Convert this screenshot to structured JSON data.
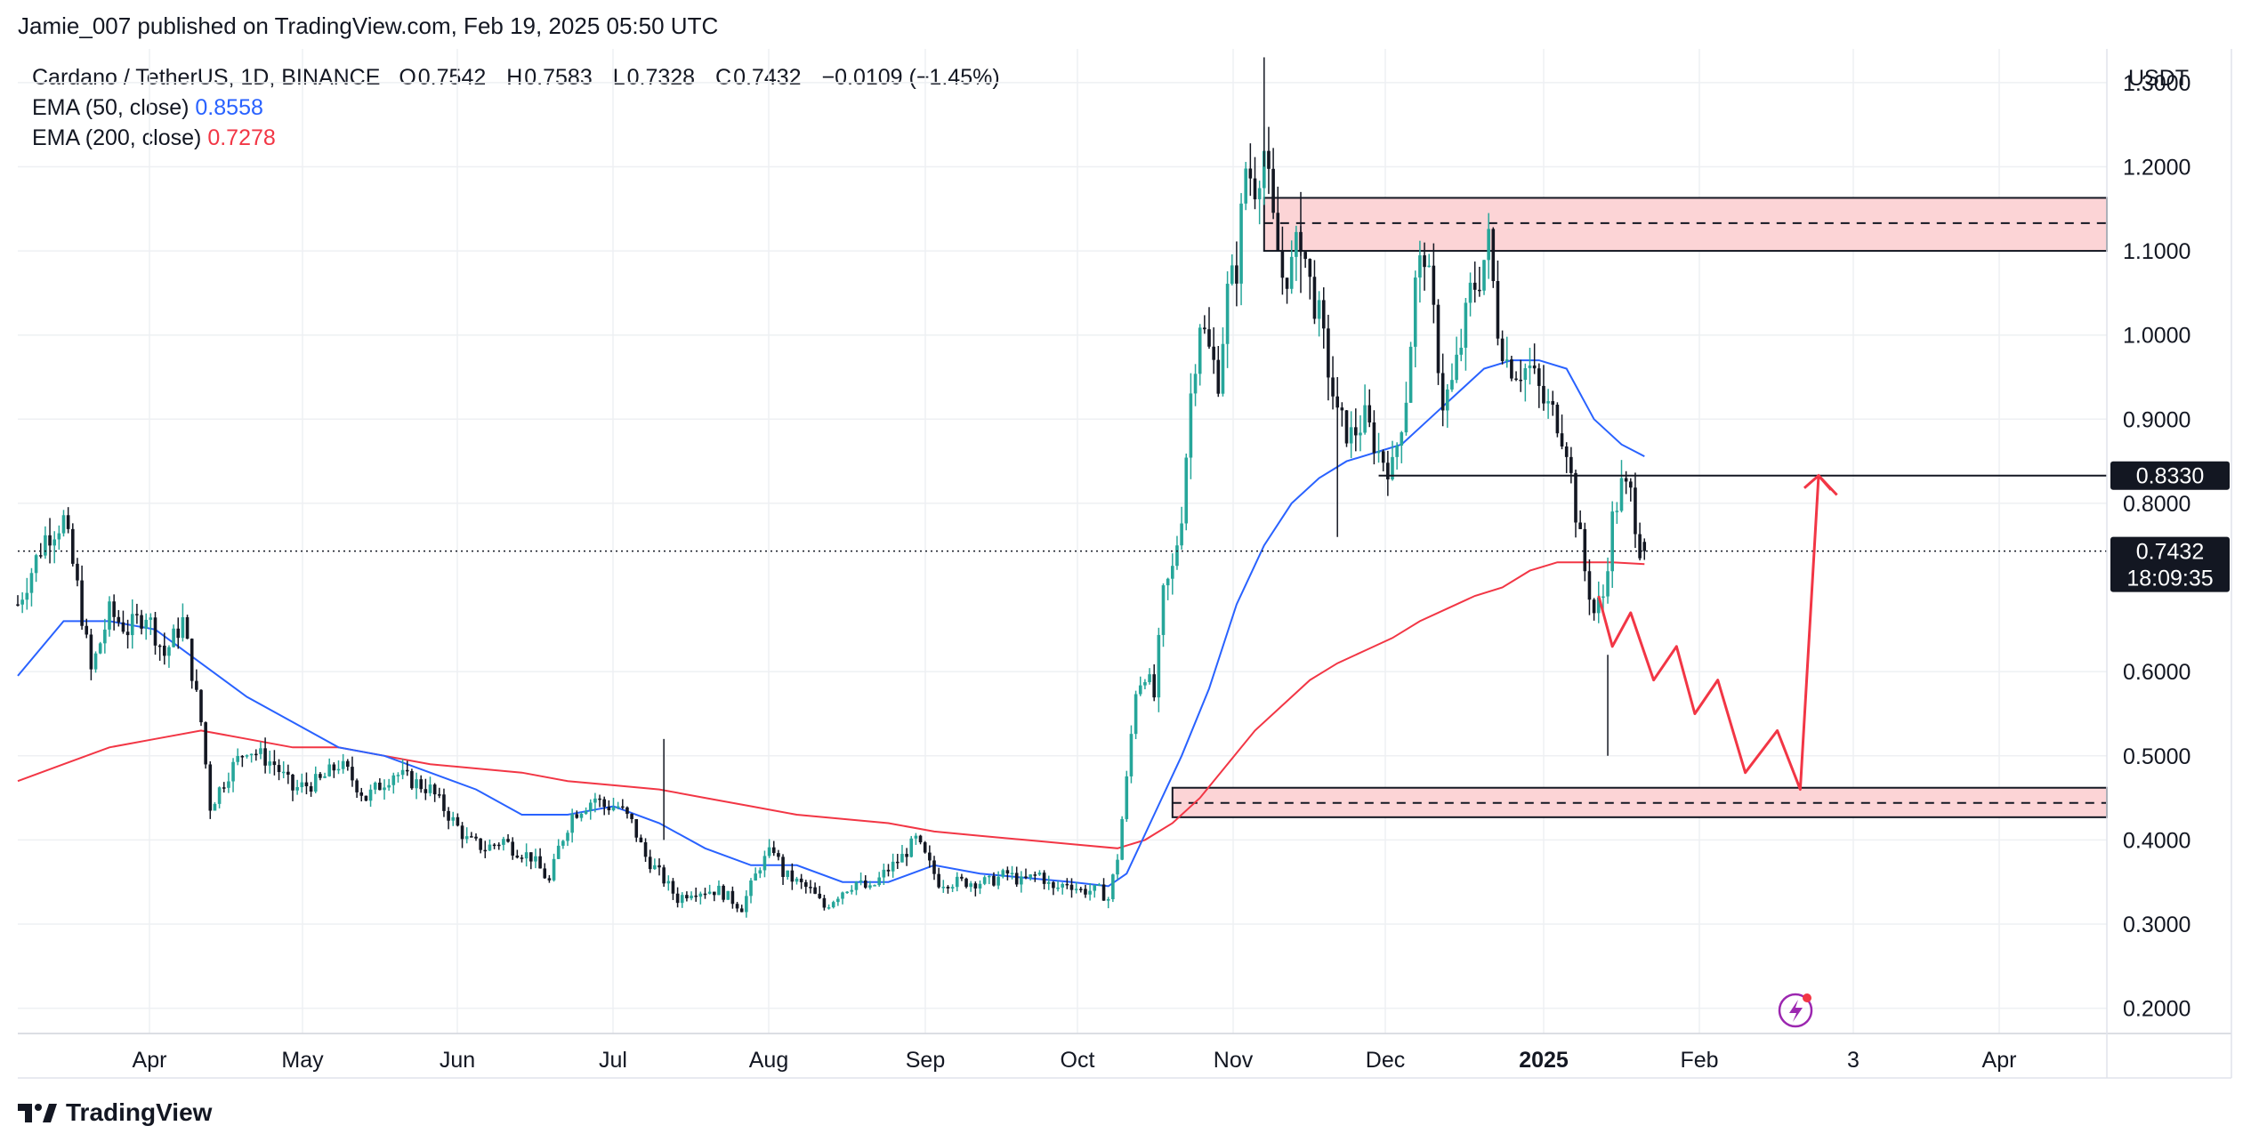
{
  "header": "Jamie_007 published on TradingView.com, Feb 19, 2025 05:50 UTC",
  "legend": {
    "symbol": "Cardano / TetherUS, 1D, BINANCE",
    "open_label": "O",
    "open": "0.7542",
    "high_label": "H",
    "high": "0.7583",
    "low_label": "L",
    "low": "0.7328",
    "close_label": "C",
    "close": "0.7432",
    "change": "−0.0109 (−1.45%)",
    "ema50_label": "EMA (50, close)",
    "ema50_value": "0.8558",
    "ema200_label": "EMA (200, close)",
    "ema200_value": "0.7278"
  },
  "footer": {
    "brand": "TradingView"
  },
  "colors": {
    "up": "#26a69a",
    "down": "#131722",
    "ema50": "#2962ff",
    "ema200": "#f23645",
    "zone_fill": "#fcd4d6",
    "projection": "#f23645",
    "grid": "#eef0f3",
    "text": "#131722"
  },
  "chart_data": {
    "type": "candlestick",
    "currency": "USDT",
    "ylim": [
      0.17,
      1.34
    ],
    "y_ticks": [
      "0.2000",
      "0.3000",
      "0.4000",
      "0.5000",
      "0.6000",
      "0.8000",
      "0.9000",
      "1.0000",
      "1.1000",
      "1.2000",
      "1.3000"
    ],
    "x_ticks": [
      "Apr",
      "May",
      "Jun",
      "Jul",
      "Aug",
      "Sep",
      "Oct",
      "Nov",
      "Dec",
      "2025",
      "Feb",
      "3",
      "Apr"
    ],
    "last_price": "0.7432",
    "countdown": "18:09:35",
    "resistance_level": "0.8330",
    "zones": [
      {
        "top": 1.163,
        "bottom": 1.1,
        "mid": 1.133
      },
      {
        "top": 0.462,
        "bottom": 0.427,
        "mid": 0.444
      }
    ],
    "anchors": [
      [
        0,
        0.68
      ],
      [
        6,
        0.76
      ],
      [
        10,
        0.78
      ],
      [
        13,
        0.7
      ],
      [
        16,
        0.6
      ],
      [
        20,
        0.67
      ],
      [
        24,
        0.65
      ],
      [
        28,
        0.67
      ],
      [
        32,
        0.62
      ],
      [
        36,
        0.66
      ],
      [
        40,
        0.54
      ],
      [
        42,
        0.44
      ],
      [
        46,
        0.48
      ],
      [
        50,
        0.51
      ],
      [
        56,
        0.49
      ],
      [
        60,
        0.46
      ],
      [
        66,
        0.47
      ],
      [
        70,
        0.49
      ],
      [
        72,
        0.48
      ],
      [
        76,
        0.45
      ],
      [
        82,
        0.48
      ],
      [
        86,
        0.47
      ],
      [
        90,
        0.46
      ],
      [
        94,
        0.43
      ],
      [
        98,
        0.4
      ],
      [
        102,
        0.39
      ],
      [
        106,
        0.4
      ],
      [
        108,
        0.39
      ],
      [
        112,
        0.38
      ],
      [
        116,
        0.35
      ],
      [
        118,
        0.39
      ],
      [
        121,
        0.43
      ],
      [
        126,
        0.45
      ],
      [
        128,
        0.44
      ],
      [
        131,
        0.44
      ],
      [
        134,
        0.42
      ],
      [
        137,
        0.38
      ],
      [
        140,
        0.36
      ],
      [
        144,
        0.33
      ],
      [
        147,
        0.34
      ],
      [
        150,
        0.34
      ],
      [
        153,
        0.34
      ],
      [
        158,
        0.32
      ],
      [
        162,
        0.37
      ],
      [
        165,
        0.39
      ],
      [
        167,
        0.36
      ],
      [
        170,
        0.35
      ],
      [
        173,
        0.34
      ],
      [
        176,
        0.32
      ],
      [
        180,
        0.34
      ],
      [
        183,
        0.35
      ],
      [
        186,
        0.34
      ],
      [
        189,
        0.36
      ],
      [
        193,
        0.38
      ],
      [
        196,
        0.4
      ],
      [
        198,
        0.38
      ],
      [
        201,
        0.35
      ],
      [
        205,
        0.35
      ],
      [
        209,
        0.35
      ],
      [
        212,
        0.35
      ],
      [
        216,
        0.36
      ],
      [
        219,
        0.35
      ],
      [
        223,
        0.36
      ],
      [
        226,
        0.34
      ],
      [
        229,
        0.35
      ],
      [
        232,
        0.34
      ],
      [
        236,
        0.34
      ],
      [
        238,
        0.33
      ],
      [
        240,
        0.38
      ],
      [
        242,
        0.47
      ],
      [
        244,
        0.58
      ],
      [
        246,
        0.6
      ],
      [
        248,
        0.57
      ],
      [
        250,
        0.69
      ],
      [
        252,
        0.72
      ],
      [
        254,
        0.79
      ],
      [
        256,
        0.93
      ],
      [
        258,
        1.02
      ],
      [
        260,
        0.98
      ],
      [
        262,
        0.95
      ],
      [
        264,
        1.05
      ],
      [
        266,
        1.08
      ],
      [
        268,
        1.2
      ],
      [
        270,
        1.18
      ],
      [
        272,
        1.22
      ],
      [
        274,
        1.13
      ],
      [
        276,
        1.07
      ],
      [
        278,
        1.08
      ],
      [
        280,
        1.12
      ],
      [
        282,
        1.06
      ],
      [
        284,
        1.02
      ],
      [
        286,
        0.96
      ],
      [
        288,
        0.9
      ],
      [
        291,
        0.88
      ],
      [
        294,
        0.9
      ],
      [
        297,
        0.86
      ],
      [
        300,
        0.84
      ],
      [
        303,
        0.93
      ],
      [
        305,
        1.06
      ],
      [
        307,
        1.1
      ],
      [
        309,
        1.02
      ],
      [
        311,
        0.92
      ],
      [
        313,
        0.94
      ],
      [
        315,
        0.99
      ],
      [
        317,
        1.05
      ],
      [
        319,
        1.07
      ],
      [
        321,
        1.11
      ],
      [
        323,
        1.01
      ],
      [
        325,
        0.97
      ],
      [
        327,
        0.96
      ],
      [
        330,
        0.96
      ],
      [
        333,
        0.92
      ],
      [
        336,
        0.9
      ],
      [
        338,
        0.87
      ],
      [
        340,
        0.79
      ],
      [
        342,
        0.72
      ],
      [
        344,
        0.67
      ],
      [
        346,
        0.69
      ],
      [
        348,
        0.78
      ],
      [
        350,
        0.82
      ],
      [
        352,
        0.81
      ],
      [
        354,
        0.75
      ],
      [
        355,
        0.7432
      ]
    ],
    "ema50": [
      [
        0,
        0.595
      ],
      [
        10,
        0.66
      ],
      [
        20,
        0.66
      ],
      [
        30,
        0.65
      ],
      [
        40,
        0.61
      ],
      [
        50,
        0.57
      ],
      [
        60,
        0.54
      ],
      [
        70,
        0.51
      ],
      [
        80,
        0.5
      ],
      [
        90,
        0.48
      ],
      [
        100,
        0.46
      ],
      [
        110,
        0.43
      ],
      [
        120,
        0.43
      ],
      [
        130,
        0.44
      ],
      [
        140,
        0.42
      ],
      [
        150,
        0.39
      ],
      [
        160,
        0.37
      ],
      [
        170,
        0.37
      ],
      [
        180,
        0.35
      ],
      [
        190,
        0.35
      ],
      [
        200,
        0.37
      ],
      [
        210,
        0.36
      ],
      [
        220,
        0.355
      ],
      [
        230,
        0.35
      ],
      [
        238,
        0.345
      ],
      [
        242,
        0.36
      ],
      [
        248,
        0.43
      ],
      [
        254,
        0.5
      ],
      [
        260,
        0.58
      ],
      [
        266,
        0.68
      ],
      [
        272,
        0.75
      ],
      [
        278,
        0.8
      ],
      [
        284,
        0.83
      ],
      [
        290,
        0.85
      ],
      [
        296,
        0.86
      ],
      [
        302,
        0.87
      ],
      [
        308,
        0.9
      ],
      [
        314,
        0.93
      ],
      [
        320,
        0.96
      ],
      [
        326,
        0.97
      ],
      [
        332,
        0.97
      ],
      [
        338,
        0.96
      ],
      [
        344,
        0.9
      ],
      [
        350,
        0.87
      ],
      [
        355,
        0.8558
      ]
    ],
    "ema200": [
      [
        0,
        0.47
      ],
      [
        10,
        0.49
      ],
      [
        20,
        0.51
      ],
      [
        30,
        0.52
      ],
      [
        40,
        0.53
      ],
      [
        50,
        0.52
      ],
      [
        60,
        0.51
      ],
      [
        70,
        0.51
      ],
      [
        80,
        0.5
      ],
      [
        90,
        0.49
      ],
      [
        100,
        0.485
      ],
      [
        110,
        0.48
      ],
      [
        120,
        0.47
      ],
      [
        130,
        0.465
      ],
      [
        140,
        0.46
      ],
      [
        150,
        0.45
      ],
      [
        160,
        0.44
      ],
      [
        170,
        0.43
      ],
      [
        180,
        0.425
      ],
      [
        190,
        0.42
      ],
      [
        200,
        0.41
      ],
      [
        210,
        0.405
      ],
      [
        220,
        0.4
      ],
      [
        230,
        0.395
      ],
      [
        240,
        0.39
      ],
      [
        246,
        0.4
      ],
      [
        252,
        0.42
      ],
      [
        258,
        0.45
      ],
      [
        264,
        0.49
      ],
      [
        270,
        0.53
      ],
      [
        276,
        0.56
      ],
      [
        282,
        0.59
      ],
      [
        288,
        0.61
      ],
      [
        294,
        0.625
      ],
      [
        300,
        0.64
      ],
      [
        306,
        0.66
      ],
      [
        312,
        0.675
      ],
      [
        318,
        0.69
      ],
      [
        324,
        0.7
      ],
      [
        330,
        0.72
      ],
      [
        336,
        0.73
      ],
      [
        342,
        0.73
      ],
      [
        348,
        0.73
      ],
      [
        355,
        0.7278
      ]
    ],
    "projection": [
      [
        345,
        0.69
      ],
      [
        348,
        0.63
      ],
      [
        352,
        0.67
      ],
      [
        357,
        0.59
      ],
      [
        362,
        0.63
      ],
      [
        366,
        0.55
      ],
      [
        371,
        0.59
      ],
      [
        377,
        0.48
      ],
      [
        384,
        0.53
      ],
      [
        389,
        0.46
      ],
      [
        393,
        0.833
      ],
      [
        397,
        0.81
      ]
    ]
  }
}
